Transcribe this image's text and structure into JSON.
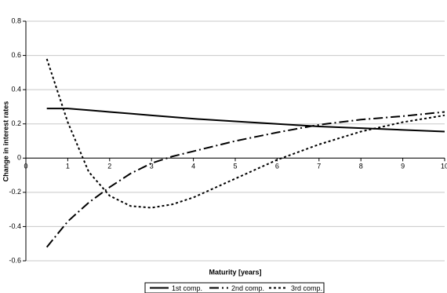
{
  "chart_data": {
    "type": "line",
    "x_label": "Maturity [years]",
    "y_label": "Change in interest rates",
    "x": [
      0.5,
      1,
      1.5,
      2,
      2.5,
      3,
      3.5,
      4,
      5,
      6,
      7,
      8,
      9,
      10
    ],
    "series": [
      {
        "name": "1st comp.",
        "color": "#000000",
        "dash": "solid",
        "values": [
          0.29,
          0.29,
          0.28,
          0.27,
          0.26,
          0.25,
          0.24,
          0.23,
          0.215,
          0.2,
          0.185,
          0.175,
          0.165,
          0.155
        ]
      },
      {
        "name": "2nd comp.",
        "color": "#000000",
        "dash": "dashdot",
        "values": [
          -0.52,
          -0.37,
          -0.26,
          -0.17,
          -0.09,
          -0.03,
          0.01,
          0.04,
          0.1,
          0.15,
          0.195,
          0.225,
          0.245,
          0.27
        ]
      },
      {
        "name": "3rd comp.",
        "color": "#000000",
        "dash": "dotted",
        "values": [
          0.58,
          0.21,
          -0.08,
          -0.22,
          -0.28,
          -0.29,
          -0.27,
          -0.23,
          -0.12,
          -0.01,
          0.08,
          0.155,
          0.21,
          0.25
        ]
      }
    ],
    "xlim": [
      0,
      10
    ],
    "xticks": [
      0,
      1,
      2,
      3,
      4,
      5,
      6,
      7,
      8,
      9,
      10
    ],
    "ylim": [
      -0.6,
      0.8
    ],
    "yticks": [
      -0.6,
      -0.4,
      -0.2,
      0,
      0.2,
      0.4,
      0.6,
      0.8
    ],
    "grid": true,
    "legend": "bottom"
  }
}
